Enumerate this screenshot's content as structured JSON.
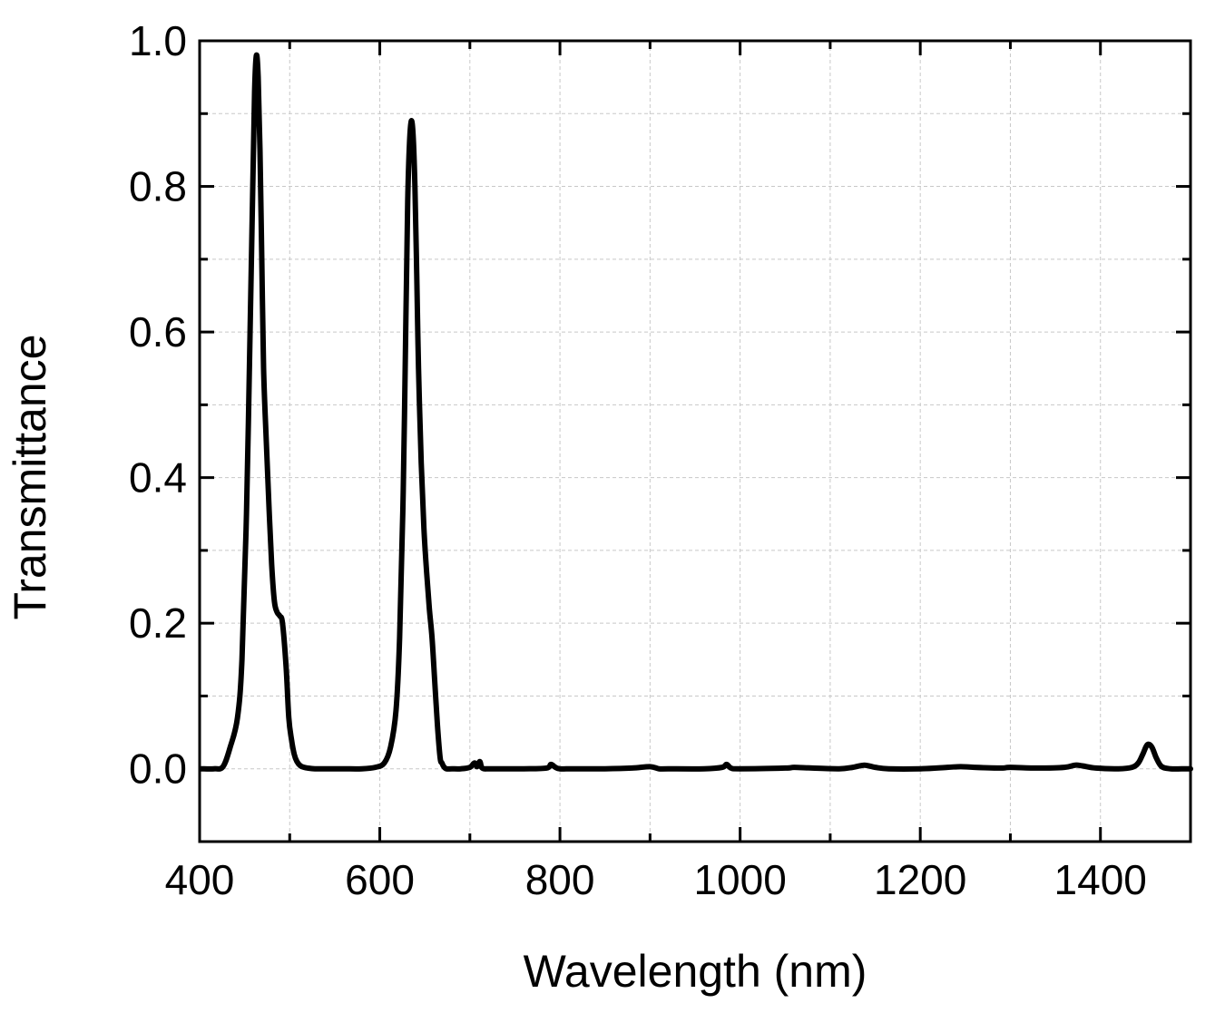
{
  "chart_data": {
    "type": "line",
    "title": "",
    "xlabel": "Wavelength (nm)",
    "ylabel": "Transmittance",
    "xlim": [
      400,
      1500
    ],
    "ylim": [
      -0.1,
      1.0
    ],
    "x_ticks": [
      400,
      600,
      800,
      1000,
      1200,
      1400
    ],
    "x_tick_labels": [
      "400",
      "600",
      "800",
      "1000",
      "1200",
      "1400"
    ],
    "y_ticks": [
      0.0,
      0.2,
      0.4,
      0.6,
      0.8,
      1.0
    ],
    "y_tick_labels": [
      "0.0",
      "0.2",
      "0.4",
      "0.6",
      "0.8",
      "1.0"
    ],
    "grid": true,
    "legend": "none",
    "series": [
      {
        "name": "Transmittance",
        "color": "#000000",
        "x": [
          402,
          416,
          426,
          434,
          442,
          447,
          452,
          456,
          459,
          461,
          463,
          465,
          467,
          469,
          471,
          474,
          477,
          480,
          483,
          486,
          489,
          492,
          496,
          499,
          502,
          505,
          508,
          512,
          516,
          520,
          528,
          540,
          560,
          580,
          595,
          605,
          612,
          618,
          622,
          626,
          629,
          631,
          633,
          635,
          637,
          639,
          641,
          643,
          646,
          649,
          652,
          655,
          658,
          661,
          664,
          667,
          669,
          671,
          674,
          680,
          690,
          700,
          705,
          708,
          711,
          713,
          716,
          720,
          730,
          760,
          785,
          790,
          795,
          800,
          815,
          850,
          880,
          900,
          910,
          920,
          960,
          980,
          985,
          990,
          1000,
          1050,
          1060,
          1080,
          1110,
          1125,
          1138,
          1150,
          1165,
          1200,
          1230,
          1245,
          1260,
          1290,
          1300,
          1330,
          1360,
          1372,
          1380,
          1395,
          1420,
          1435,
          1442,
          1447,
          1452,
          1457,
          1462,
          1468,
          1478,
          1490,
          1500
        ],
        "y": [
          0.0,
          0.0,
          0.003,
          0.03,
          0.07,
          0.15,
          0.35,
          0.6,
          0.8,
          0.93,
          0.98,
          0.95,
          0.85,
          0.7,
          0.55,
          0.45,
          0.36,
          0.28,
          0.23,
          0.215,
          0.21,
          0.2,
          0.14,
          0.07,
          0.04,
          0.02,
          0.01,
          0.004,
          0.002,
          0.001,
          0.0,
          0.0,
          0.0,
          0.0,
          0.002,
          0.008,
          0.03,
          0.08,
          0.18,
          0.38,
          0.62,
          0.78,
          0.86,
          0.89,
          0.87,
          0.8,
          0.68,
          0.55,
          0.42,
          0.33,
          0.27,
          0.22,
          0.18,
          0.12,
          0.06,
          0.015,
          0.008,
          0.003,
          0.0,
          0.0,
          0.0,
          0.002,
          0.008,
          0.003,
          0.01,
          0.002,
          0.0,
          0.0,
          0.0,
          0.0,
          0.001,
          0.006,
          0.002,
          0.0,
          0.0,
          0.0,
          0.001,
          0.003,
          0.0,
          0.0,
          0.0,
          0.002,
          0.006,
          0.001,
          0.0,
          0.001,
          0.002,
          0.001,
          0.0,
          0.002,
          0.005,
          0.002,
          0.0,
          0.0,
          0.002,
          0.003,
          0.002,
          0.001,
          0.002,
          0.001,
          0.002,
          0.005,
          0.004,
          0.001,
          0.0,
          0.002,
          0.008,
          0.02,
          0.033,
          0.03,
          0.015,
          0.003,
          0.0,
          0.0,
          0.0
        ]
      }
    ]
  }
}
